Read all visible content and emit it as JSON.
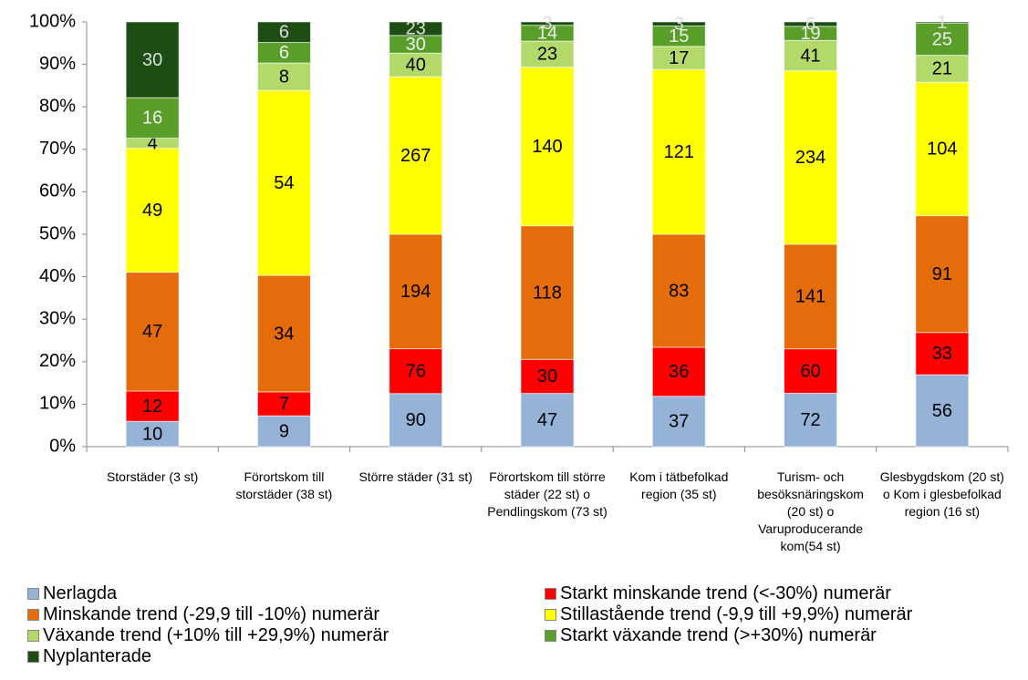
{
  "chart_data": {
    "type": "stacked_percent_bar",
    "categories": [
      "Storstäder (3 st)",
      "Förortskom till storstäder (38 st)",
      "Större städer (31 st)",
      "Förortskom till större städer (22 st) o Pendlingskom (73 st)",
      "Kom i tätbefolkad region (35 st)",
      "Turism- och besöksnäringskom (20 st) o Varuproducerande kom(54 st)",
      "Glesbygdskom (20 st) o Kom i glesbefolkad region (16 st)"
    ],
    "series": [
      {
        "name": "Nerlagda",
        "color": "#95b3d7",
        "label_color": "#000000",
        "values": [
          10,
          9,
          90,
          47,
          37,
          72,
          56
        ]
      },
      {
        "name": "Starkt minskande trend (<-30%) numerär",
        "color": "#ff0000",
        "label_color": "#000000",
        "values": [
          12,
          7,
          76,
          30,
          36,
          60,
          33
        ]
      },
      {
        "name": "Minskande trend (-29,9 till -10%) numerär",
        "color": "#e46c0a",
        "label_color": "#000000",
        "values": [
          47,
          34,
          194,
          118,
          83,
          141,
          91
        ]
      },
      {
        "name": "Stillastående trend (-9,9 till +9,9%) numerär",
        "color": "#ffff00",
        "label_color": "#000000",
        "values": [
          49,
          54,
          267,
          140,
          121,
          234,
          104
        ]
      },
      {
        "name": "Växande trend (+10% till +29,9%) numerär",
        "color": "#b3d96b",
        "label_color": "#000000",
        "values": [
          4,
          8,
          40,
          23,
          17,
          41,
          21
        ]
      },
      {
        "name": "Starkt växande trend (>+30%) numerär",
        "color": "#5a9e2a",
        "label_color": "#eeeeee",
        "values": [
          16,
          6,
          30,
          14,
          15,
          19,
          25
        ]
      },
      {
        "name": "Nyplanterade",
        "color": "#1d4d13",
        "label_color": "#dddddd",
        "values": [
          30,
          6,
          23,
          3,
          3,
          6,
          1
        ]
      }
    ],
    "ylim": [
      0,
      100
    ],
    "yticks": [
      {
        "value": 0,
        "label": "0%"
      },
      {
        "value": 10,
        "label": "10%"
      },
      {
        "value": 20,
        "label": "20%"
      },
      {
        "value": 30,
        "label": "30%"
      },
      {
        "value": 40,
        "label": "40%"
      },
      {
        "value": 50,
        "label": "50%"
      },
      {
        "value": 60,
        "label": "60%"
      },
      {
        "value": 70,
        "label": "70%"
      },
      {
        "value": 80,
        "label": "80%"
      },
      {
        "value": 90,
        "label": "90%"
      },
      {
        "value": 100,
        "label": "100%"
      }
    ]
  }
}
